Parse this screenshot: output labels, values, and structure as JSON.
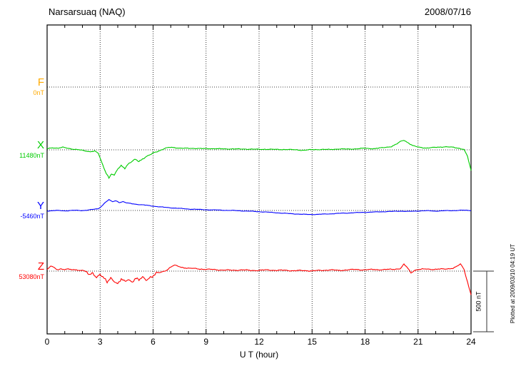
{
  "chart_data": {
    "type": "line",
    "title": "Narsarsuaq (NAQ)",
    "date": "2008/07/16",
    "xlabel": "U T (hour)",
    "x_range": [
      0,
      24
    ],
    "x_ticks": [
      0,
      3,
      6,
      9,
      12,
      15,
      18,
      21,
      24
    ],
    "grid": "dotted vertical lines every 3 hours; dotted horizontal baseline per component",
    "legend_position": "left of plot, one colored label per component",
    "scale_bar": {
      "label": "500 nT",
      "nT": 500
    },
    "plotted_at": "Plotted at 2009/03/10 04:19 UT",
    "points_format": "[UT hour, offset from baseline_value in nT]",
    "series": [
      {
        "name": "F",
        "baseline_label": "0nT",
        "baseline_value": 0,
        "color": "#ffaa00",
        "unit": "nT",
        "note": "no trace visible, flat dotted baseline only",
        "points": []
      },
      {
        "name": "X",
        "baseline_label": "11480nT",
        "baseline_value": 11480,
        "color": "#00cc00",
        "unit": "nT",
        "points": [
          [
            0,
            8
          ],
          [
            0.3,
            18
          ],
          [
            0.6,
            14
          ],
          [
            0.9,
            20
          ],
          [
            1.2,
            12
          ],
          [
            1.5,
            6
          ],
          [
            1.8,
            0
          ],
          [
            2.1,
            -8
          ],
          [
            2.4,
            -14
          ],
          [
            2.7,
            -10
          ],
          [
            2.9,
            -30
          ],
          [
            3.1,
            -110
          ],
          [
            3.3,
            -175
          ],
          [
            3.5,
            -230
          ],
          [
            3.65,
            -195
          ],
          [
            3.8,
            -215
          ],
          [
            4,
            -160
          ],
          [
            4.2,
            -130
          ],
          [
            4.4,
            -148
          ],
          [
            4.6,
            -115
          ],
          [
            4.8,
            -98
          ],
          [
            5,
            -82
          ],
          [
            5.2,
            -95
          ],
          [
            5.5,
            -62
          ],
          [
            5.8,
            -45
          ],
          [
            6.1,
            -22
          ],
          [
            6.4,
            -4
          ],
          [
            6.7,
            14
          ],
          [
            7,
            20
          ],
          [
            7.5,
            15
          ],
          [
            8,
            11
          ],
          [
            8.5,
            13
          ],
          [
            9,
            8
          ],
          [
            9.5,
            11
          ],
          [
            10,
            6
          ],
          [
            10.5,
            9
          ],
          [
            11,
            5
          ],
          [
            11.5,
            7
          ],
          [
            12,
            3
          ],
          [
            12.5,
            6
          ],
          [
            13,
            2
          ],
          [
            13.5,
            4
          ],
          [
            14,
            0
          ],
          [
            14.5,
            -3
          ],
          [
            15,
            1
          ],
          [
            15.5,
            4
          ],
          [
            16,
            2
          ],
          [
            16.5,
            8
          ],
          [
            17,
            5
          ],
          [
            17.5,
            9
          ],
          [
            18,
            12
          ],
          [
            18.5,
            10
          ],
          [
            19,
            17
          ],
          [
            19.5,
            28
          ],
          [
            19.8,
            48
          ],
          [
            20,
            68
          ],
          [
            20.2,
            80
          ],
          [
            20.45,
            58
          ],
          [
            20.7,
            34
          ],
          [
            21,
            22
          ],
          [
            21.5,
            15
          ],
          [
            22,
            20
          ],
          [
            22.5,
            26
          ],
          [
            23,
            20
          ],
          [
            23.3,
            14
          ],
          [
            23.6,
            4
          ],
          [
            23.8,
            -55
          ],
          [
            24,
            -172
          ]
        ]
      },
      {
        "name": "Y",
        "baseline_label": "-5460nT",
        "baseline_value": -5460,
        "color": "#0000ff",
        "unit": "nT",
        "points": [
          [
            0,
            -4
          ],
          [
            0.5,
            0
          ],
          [
            1,
            -3
          ],
          [
            1.5,
            1
          ],
          [
            2,
            -1
          ],
          [
            2.5,
            7
          ],
          [
            2.9,
            14
          ],
          [
            3.1,
            38
          ],
          [
            3.3,
            68
          ],
          [
            3.5,
            88
          ],
          [
            3.7,
            72
          ],
          [
            3.9,
            80
          ],
          [
            4.1,
            66
          ],
          [
            4.3,
            73
          ],
          [
            4.5,
            62
          ],
          [
            5,
            52
          ],
          [
            5.5,
            45
          ],
          [
            6,
            36
          ],
          [
            6.5,
            28
          ],
          [
            7,
            22
          ],
          [
            7.5,
            17
          ],
          [
            8,
            12
          ],
          [
            8.5,
            9
          ],
          [
            9,
            6
          ],
          [
            9.5,
            4
          ],
          [
            10,
            2
          ],
          [
            10.5,
            0
          ],
          [
            11,
            -3
          ],
          [
            11.5,
            -6
          ],
          [
            12,
            -10
          ],
          [
            12.5,
            -14
          ],
          [
            13,
            -19
          ],
          [
            13.5,
            -24
          ],
          [
            14,
            -28
          ],
          [
            14.5,
            -32
          ],
          [
            15,
            -33
          ],
          [
            15.5,
            -31
          ],
          [
            16,
            -28
          ],
          [
            16.5,
            -24
          ],
          [
            17,
            -21
          ],
          [
            17.5,
            -18
          ],
          [
            18,
            -15
          ],
          [
            18.5,
            -13
          ],
          [
            19,
            -10
          ],
          [
            19.5,
            -8
          ],
          [
            20,
            -5
          ],
          [
            20.5,
            -8
          ],
          [
            21,
            -4
          ],
          [
            21.5,
            -2
          ],
          [
            22,
            -5
          ],
          [
            22.5,
            -2
          ],
          [
            23,
            -1
          ],
          [
            23.5,
            2
          ],
          [
            24,
            0
          ]
        ]
      },
      {
        "name": "Z",
        "baseline_label": "53080nT",
        "baseline_value": 53080,
        "color": "#ff0000",
        "unit": "nT",
        "points": [
          [
            0,
            14
          ],
          [
            0.2,
            40
          ],
          [
            0.4,
            28
          ],
          [
            0.6,
            10
          ],
          [
            0.8,
            22
          ],
          [
            1,
            12
          ],
          [
            1.2,
            18
          ],
          [
            1.4,
            8
          ],
          [
            1.6,
            14
          ],
          [
            1.8,
            6
          ],
          [
            2,
            10
          ],
          [
            2.2,
            -8
          ],
          [
            2.4,
            -35
          ],
          [
            2.6,
            -15
          ],
          [
            2.8,
            -46
          ],
          [
            3,
            -24
          ],
          [
            3.2,
            -62
          ],
          [
            3.4,
            -95
          ],
          [
            3.6,
            -55
          ],
          [
            3.8,
            -76
          ],
          [
            4,
            -105
          ],
          [
            4.2,
            -70
          ],
          [
            4.4,
            -92
          ],
          [
            4.6,
            -64
          ],
          [
            4.8,
            -86
          ],
          [
            5,
            -58
          ],
          [
            5.2,
            -78
          ],
          [
            5.4,
            -54
          ],
          [
            5.6,
            -70
          ],
          [
            5.8,
            -50
          ],
          [
            6,
            -38
          ],
          [
            6.2,
            -22
          ],
          [
            6.4,
            -12
          ],
          [
            6.6,
            -2
          ],
          [
            6.8,
            12
          ],
          [
            7,
            34
          ],
          [
            7.2,
            48
          ],
          [
            7.4,
            40
          ],
          [
            7.6,
            32
          ],
          [
            7.8,
            28
          ],
          [
            8,
            24
          ],
          [
            8.5,
            19
          ],
          [
            9,
            15
          ],
          [
            9.5,
            12
          ],
          [
            10,
            9
          ],
          [
            10.5,
            7
          ],
          [
            11,
            10
          ],
          [
            11.5,
            6
          ],
          [
            12,
            6
          ],
          [
            12.5,
            10
          ],
          [
            13,
            6
          ],
          [
            13.5,
            7
          ],
          [
            14,
            3
          ],
          [
            14.5,
            5
          ],
          [
            15,
            2
          ],
          [
            15.5,
            6
          ],
          [
            16,
            10
          ],
          [
            16.5,
            6
          ],
          [
            17,
            10
          ],
          [
            17.5,
            14
          ],
          [
            18,
            10
          ],
          [
            18.5,
            14
          ],
          [
            19,
            11
          ],
          [
            19.5,
            15
          ],
          [
            20,
            20
          ],
          [
            20.2,
            55
          ],
          [
            20.4,
            28
          ],
          [
            20.6,
            -14
          ],
          [
            20.8,
            8
          ],
          [
            21,
            12
          ],
          [
            21.5,
            18
          ],
          [
            22,
            14
          ],
          [
            22.5,
            18
          ],
          [
            23,
            24
          ],
          [
            23.2,
            38
          ],
          [
            23.4,
            58
          ],
          [
            23.6,
            18
          ],
          [
            23.8,
            -90
          ],
          [
            24,
            -195
          ]
        ]
      }
    ]
  }
}
